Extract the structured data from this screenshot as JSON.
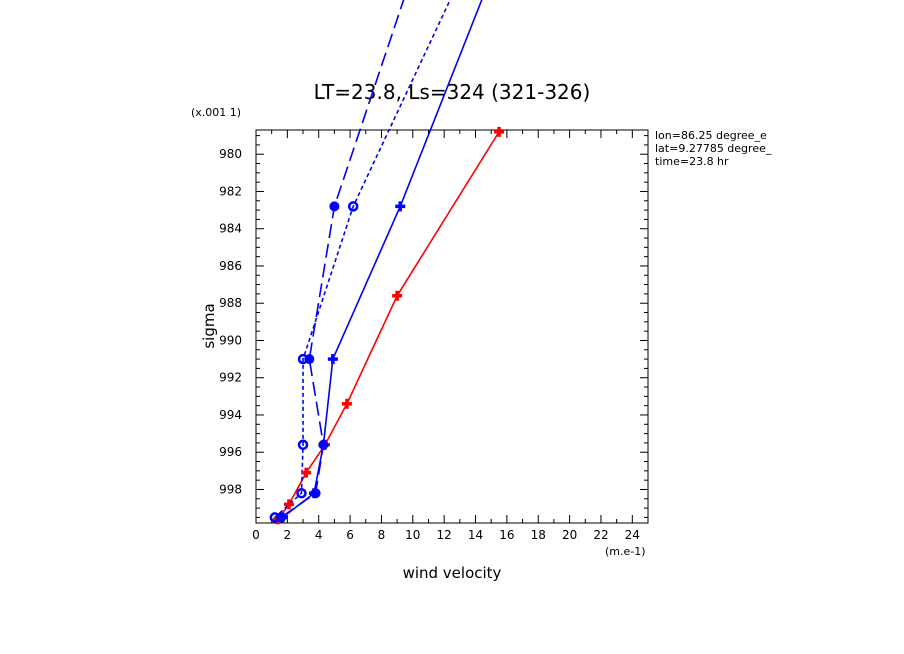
{
  "chart_data": {
    "type": "line",
    "title": "LT=23.8, Ls=324 (321-326)",
    "xlabel": "wind velocity",
    "ylabel": "sigma",
    "x_unit": "(m.e-1)",
    "y_unit": "(x.001 1)",
    "xlim": [
      0,
      25
    ],
    "ylim": [
      999.8,
      978.7
    ],
    "y_inverted": true,
    "x_ticks": [
      "0",
      "2",
      "4",
      "6",
      "8",
      "10",
      "12",
      "14",
      "16",
      "18",
      "20",
      "22",
      "24"
    ],
    "y_ticks": [
      "980",
      "982",
      "984",
      "986",
      "988",
      "990",
      "992",
      "994",
      "996",
      "998"
    ],
    "annotations": [
      "lon=86.25 degree_e",
      "lat=9.27785 degree_",
      "time=23.8 hr"
    ],
    "grid": false,
    "series": [
      {
        "color": "#ff0000",
        "style": "solid",
        "marker": "cross",
        "points": [
          [
            15.5,
            978.8
          ],
          [
            9.0,
            987.6
          ],
          [
            5.8,
            993.4
          ],
          [
            4.4,
            995.6
          ],
          [
            3.2,
            997.1
          ],
          [
            2.1,
            998.8
          ],
          [
            1.4,
            999.6
          ]
        ]
      },
      {
        "color": "#0000ff",
        "style": "solid",
        "marker": "cross",
        "points": [
          [
            14.5,
            971.5
          ],
          [
            9.2,
            982.8
          ],
          [
            4.9,
            991.0
          ],
          [
            4.3,
            995.6
          ],
          [
            3.7,
            998.2
          ],
          [
            1.7,
            999.5
          ]
        ]
      },
      {
        "color": "#0000ff",
        "style": "longdash",
        "marker": "dot-circle",
        "points": [
          [
            9.5,
            971.5
          ],
          [
            5.0,
            982.8
          ],
          [
            3.4,
            991.0
          ],
          [
            4.3,
            995.6
          ],
          [
            3.8,
            998.2
          ],
          [
            1.6,
            999.5
          ]
        ]
      },
      {
        "color": "#0000ff",
        "style": "shortdash",
        "marker": "circle",
        "points": [
          [
            12.5,
            971.5
          ],
          [
            6.2,
            982.8
          ],
          [
            3.0,
            991.0
          ],
          [
            3.0,
            995.6
          ],
          [
            2.9,
            998.2
          ],
          [
            1.2,
            999.5
          ]
        ]
      }
    ]
  }
}
